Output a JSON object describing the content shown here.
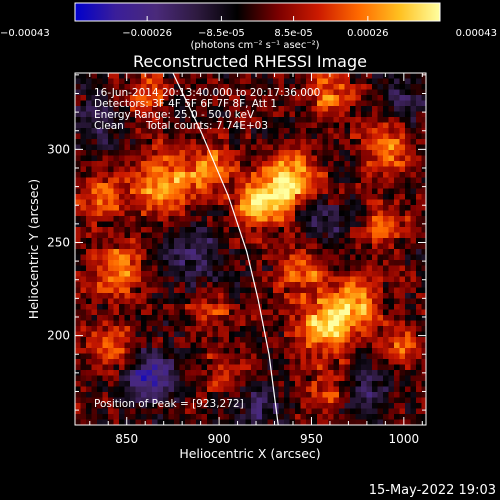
{
  "chart_data": {
    "type": "heatmap",
    "title": "Reconstructed RHESSI Image",
    "xlabel": "Heliocentric X (arcsec)",
    "ylabel": "Heliocentric Y (arcsec)",
    "xlim": [
      822,
      1012
    ],
    "ylim": [
      152,
      341
    ],
    "x_ticks": [
      850,
      900,
      950,
      1000
    ],
    "y_ticks": [
      200,
      250,
      300
    ],
    "colorbar": {
      "range": [
        -0.00043,
        0.00043
      ],
      "ticks": [
        "-0.00043",
        "-0.00026",
        "-8.5e-05",
        "8.5e-05",
        "0.00026",
        "0.00043"
      ],
      "unit_label": "(photons cm⁻² s⁻¹ asec⁻²)",
      "colormap": [
        "#0000cc",
        "#3a1e9a",
        "#4a2a7a",
        "#2e1a40",
        "#000000",
        "#7a0000",
        "#cc1a00",
        "#ff6a00",
        "#ffc020",
        "#ffffa0"
      ]
    },
    "annotations": {
      "time_range": "16-Jun-2014 20:13:40.000 to 20:17:36.000",
      "detectors": "Detectors: 3F 4F 5F 6F 7F 8F, Att 1",
      "energy": "Energy Range: 25.0 - 50.0 keV",
      "method": "Clean",
      "total_counts": "Total counts: 7.74E+03",
      "peak": "Position of Peak = [923,272]"
    },
    "limb_curve": {
      "x": [
        875,
        890,
        905,
        915,
        921,
        927,
        932
      ],
      "y": [
        341,
        310,
        275,
        245,
        220,
        190,
        152
      ]
    },
    "sources": [
      {
        "x": 923,
        "y": 272,
        "amp": 1.0,
        "sigma": 9
      },
      {
        "x": 940,
        "y": 285,
        "amp": 0.85,
        "sigma": 10
      },
      {
        "x": 870,
        "y": 280,
        "amp": 0.75,
        "sigma": 12
      },
      {
        "x": 895,
        "y": 290,
        "amp": 0.6,
        "sigma": 9
      },
      {
        "x": 958,
        "y": 205,
        "amp": 0.9,
        "sigma": 11
      },
      {
        "x": 975,
        "y": 218,
        "amp": 0.7,
        "sigma": 9
      },
      {
        "x": 945,
        "y": 235,
        "amp": 0.6,
        "sigma": 9
      },
      {
        "x": 845,
        "y": 235,
        "amp": 0.65,
        "sigma": 10
      },
      {
        "x": 835,
        "y": 275,
        "amp": 0.5,
        "sigma": 9
      },
      {
        "x": 840,
        "y": 195,
        "amp": 0.55,
        "sigma": 9
      },
      {
        "x": 990,
        "y": 300,
        "amp": 0.55,
        "sigma": 10
      },
      {
        "x": 990,
        "y": 260,
        "amp": 0.5,
        "sigma": 8
      },
      {
        "x": 1000,
        "y": 195,
        "amp": 0.45,
        "sigma": 8
      },
      {
        "x": 960,
        "y": 330,
        "amp": 0.5,
        "sigma": 9
      },
      {
        "x": 860,
        "y": 330,
        "amp": 0.45,
        "sigma": 8
      },
      {
        "x": 905,
        "y": 180,
        "amp": 0.4,
        "sigma": 9
      },
      {
        "x": 960,
        "y": 170,
        "amp": 0.45,
        "sigma": 9
      },
      {
        "x": 895,
        "y": 215,
        "amp": 0.4,
        "sigma": 8
      },
      {
        "x": 862,
        "y": 178,
        "amp": -0.75,
        "sigma": 10
      },
      {
        "x": 885,
        "y": 245,
        "amp": -0.5,
        "sigma": 12
      },
      {
        "x": 920,
        "y": 165,
        "amp": -0.45,
        "sigma": 10
      },
      {
        "x": 980,
        "y": 170,
        "amp": -0.45,
        "sigma": 10
      },
      {
        "x": 955,
        "y": 260,
        "amp": -0.4,
        "sigma": 8
      },
      {
        "x": 1000,
        "y": 325,
        "amp": -0.4,
        "sigma": 9
      },
      {
        "x": 835,
        "y": 315,
        "amp": -0.4,
        "sigma": 9
      }
    ]
  },
  "timestamp": "15-May-2022 19:03"
}
